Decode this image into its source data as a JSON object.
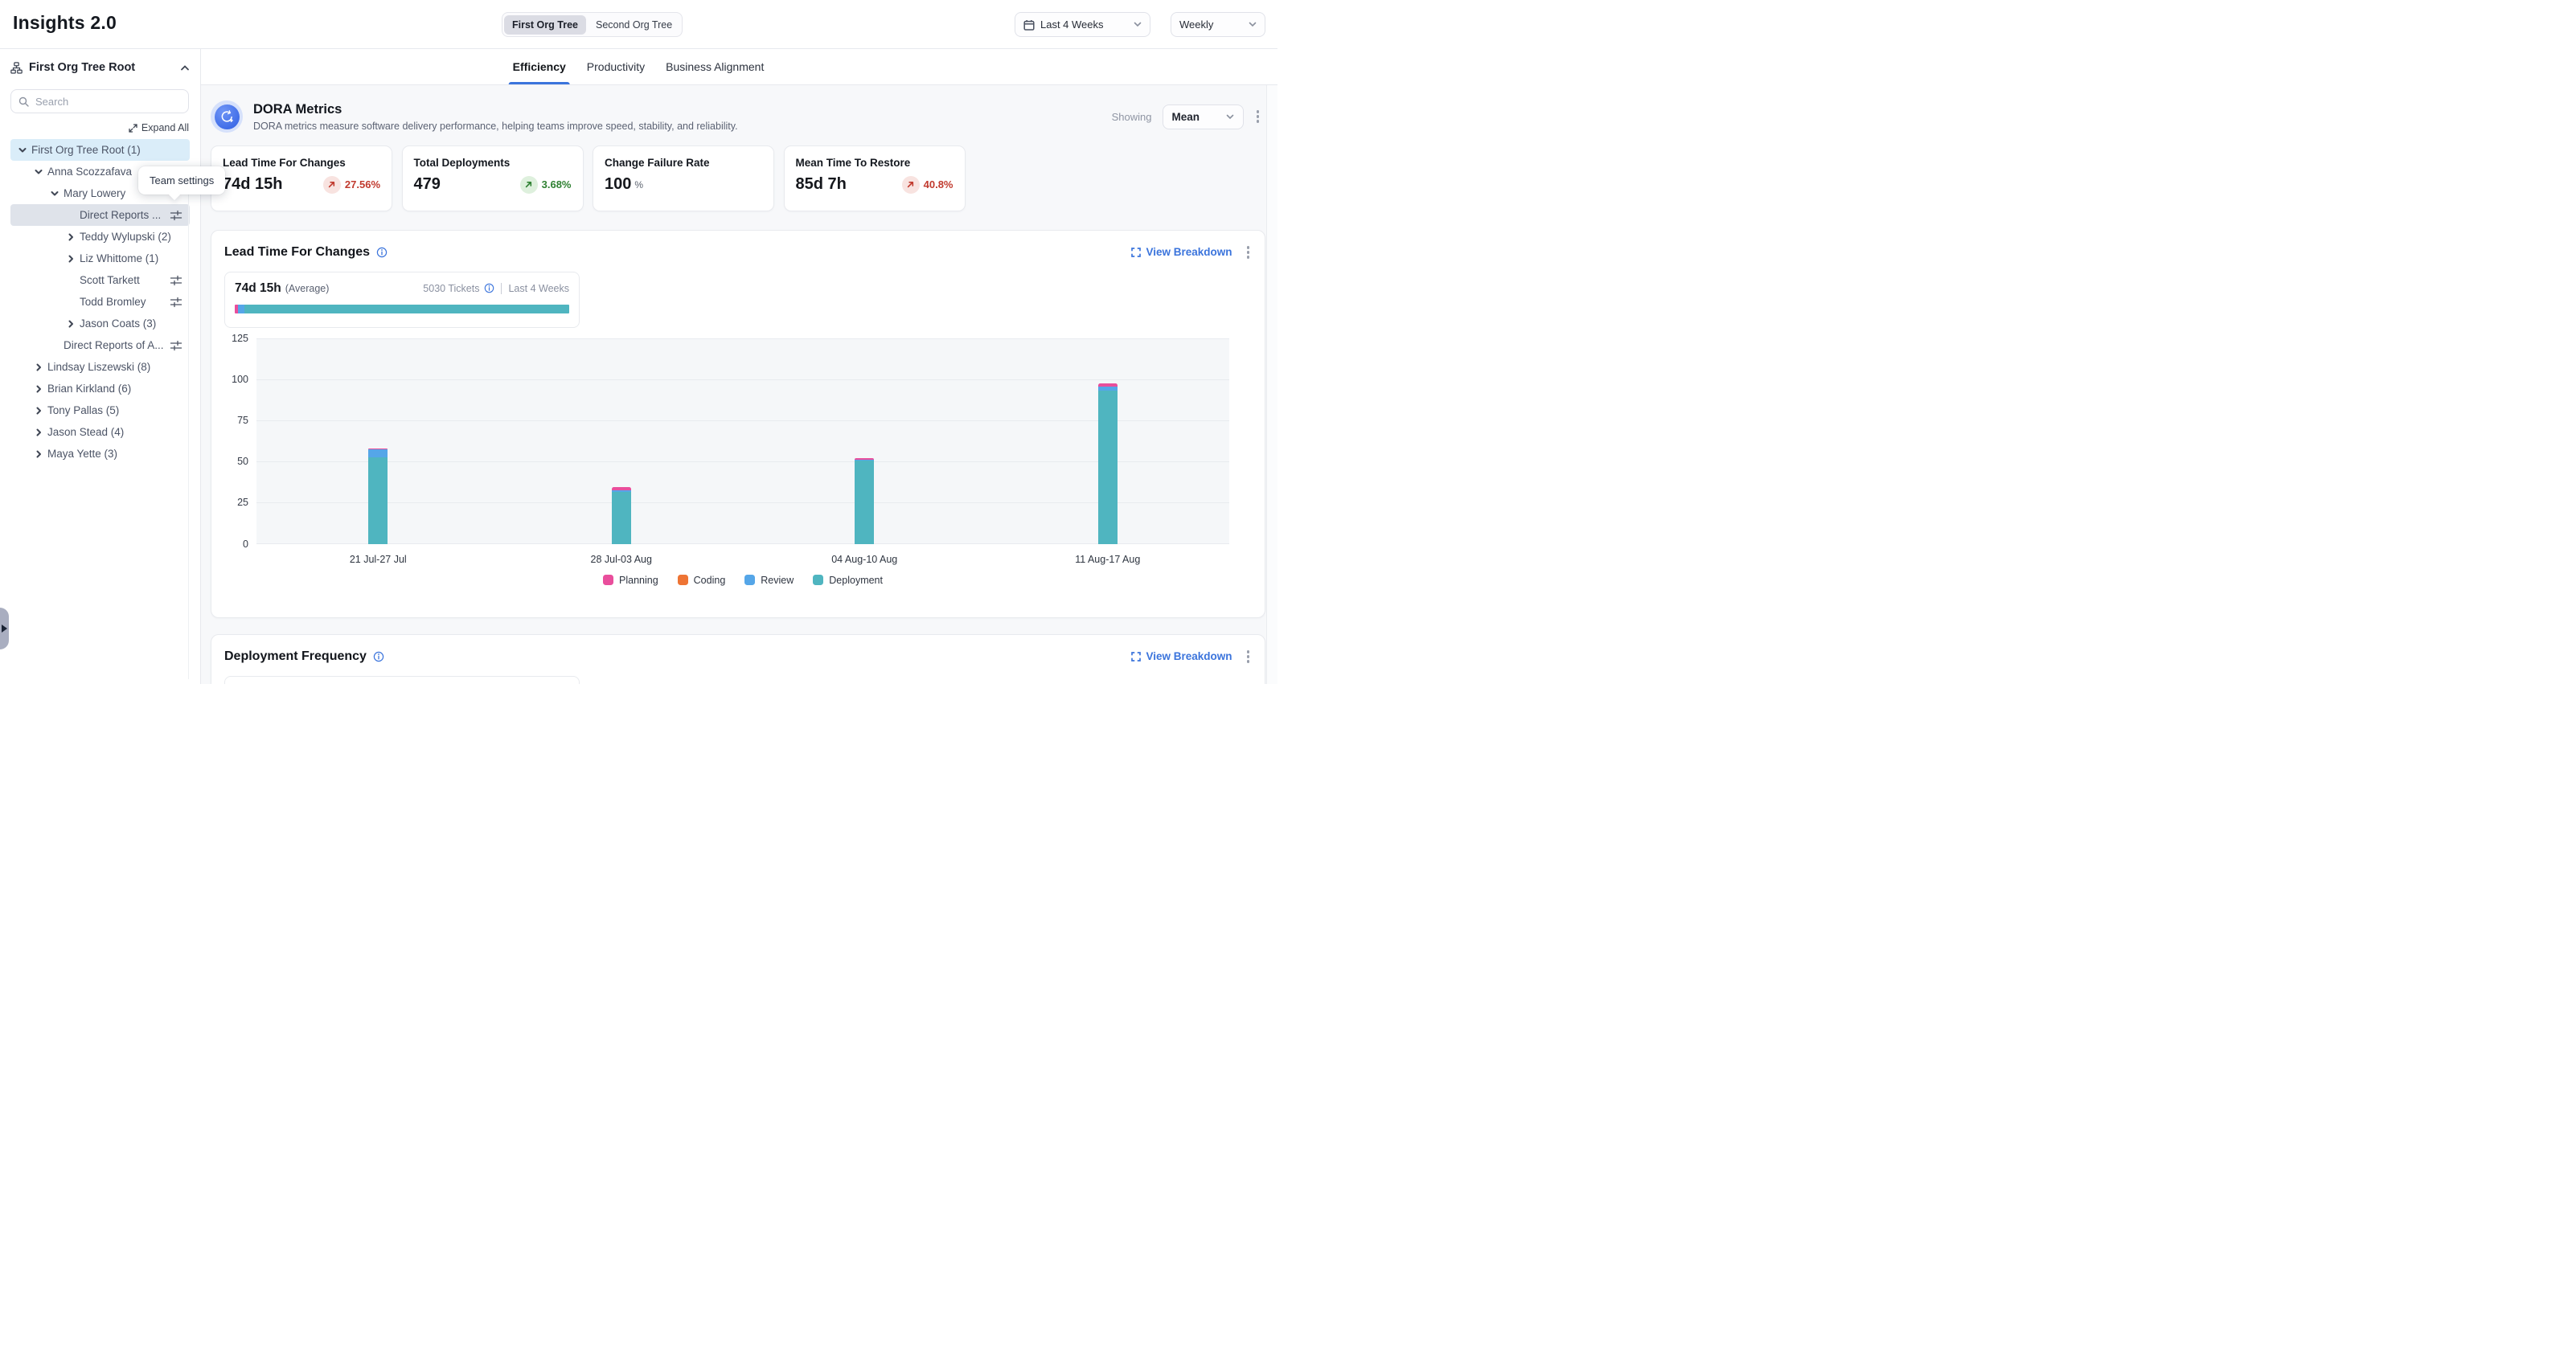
{
  "app": {
    "title": "Insights 2.0"
  },
  "header": {
    "org_toggle": [
      {
        "label": "First Org Tree",
        "active": true
      },
      {
        "label": "Second Org Tree",
        "active": false
      }
    ],
    "date_range": "Last 4 Weeks",
    "granularity": "Weekly"
  },
  "sidebar": {
    "header_title": "First Org Tree Root",
    "search_placeholder": "Search",
    "expand_all": "Expand All",
    "tooltip": "Team settings",
    "tree": [
      {
        "label": "First Org Tree Root (1)",
        "level": 0,
        "chevron": "down",
        "highlight": "blue"
      },
      {
        "label": "Anna Scozzafava",
        "level": 1,
        "chevron": "down"
      },
      {
        "label": "Mary Lowery",
        "level": 2,
        "chevron": "down"
      },
      {
        "label": "Direct Reports ...",
        "level": 3,
        "chevron": "none",
        "selected": true,
        "settings_icon": true
      },
      {
        "label": "Teddy Wylupski (2)",
        "level": 3,
        "chevron": "right"
      },
      {
        "label": "Liz Whittome (1)",
        "level": 3,
        "chevron": "right"
      },
      {
        "label": "Scott Tarkett",
        "level": 3,
        "chevron": "none",
        "settings_icon": true
      },
      {
        "label": "Todd Bromley",
        "level": 3,
        "chevron": "none",
        "settings_icon": true
      },
      {
        "label": "Jason Coats (3)",
        "level": 3,
        "chevron": "right"
      },
      {
        "label": "Direct Reports of A...",
        "level": 2,
        "chevron": "none",
        "settings_icon": true
      },
      {
        "label": "Lindsay Liszewski (8)",
        "level": 1,
        "chevron": "right"
      },
      {
        "label": "Brian Kirkland (6)",
        "level": 1,
        "chevron": "right"
      },
      {
        "label": "Tony Pallas (5)",
        "level": 1,
        "chevron": "right"
      },
      {
        "label": "Jason Stead (4)",
        "level": 1,
        "chevron": "right"
      },
      {
        "label": "Maya Yette (3)",
        "level": 1,
        "chevron": "right"
      }
    ]
  },
  "tabs": [
    {
      "label": "Efficiency",
      "active": true
    },
    {
      "label": "Productivity",
      "active": false
    },
    {
      "label": "Business Alignment",
      "active": false
    }
  ],
  "dora": {
    "title": "DORA Metrics",
    "subtitle": "DORA metrics measure software delivery performance, helping teams improve speed, stability, and reliability.",
    "showing_label": "Showing",
    "showing_value": "Mean"
  },
  "metric_cards": [
    {
      "title": "Lead Time For Changes",
      "value": "74d 15h",
      "delta": "27.56%",
      "direction": "up",
      "tone": "bad"
    },
    {
      "title": "Total Deployments",
      "value": "479",
      "delta": "3.68%",
      "direction": "up",
      "tone": "good"
    },
    {
      "title": "Change Failure Rate",
      "value": "100",
      "suffix": "%"
    },
    {
      "title": "Mean Time To Restore",
      "value": "85d 7h",
      "delta": "40.8%",
      "direction": "up",
      "tone": "bad"
    }
  ],
  "lead": {
    "title": "Lead Time For Changes",
    "view_breakdown": "View Breakdown",
    "average_value": "74d 15h",
    "average_label": "(Average)",
    "tickets": "5030 Tickets",
    "range_label": "Last 4 Weeks",
    "summary_segments": [
      {
        "name": "Planning",
        "pct": 1.0
      },
      {
        "name": "Review",
        "pct": 1.9
      },
      {
        "name": "Deployment",
        "pct": 97.1
      }
    ]
  },
  "deploy": {
    "title": "Deployment Frequency",
    "view_breakdown": "View Breakdown"
  },
  "chart_data": {
    "type": "bar",
    "stacked": true,
    "title": "Lead Time For Changes",
    "categories": [
      "21 Jul-27 Jul",
      "28 Jul-03 Aug",
      "04 Aug-10 Aug",
      "11 Aug-17 Aug"
    ],
    "series": [
      {
        "name": "Planning",
        "color": "#e94e9c",
        "values": [
          0.7,
          2.2,
          0.9,
          2.0
        ]
      },
      {
        "name": "Coding",
        "color": "#ee7434",
        "values": [
          0,
          0,
          0,
          0
        ]
      },
      {
        "name": "Review",
        "color": "#55a6e8",
        "values": [
          4.8,
          0.8,
          0.6,
          2.5
        ]
      },
      {
        "name": "Deployment",
        "color": "#4fb5c0",
        "values": [
          52.5,
          31.5,
          50.5,
          93.0
        ]
      }
    ],
    "stack_order_bottom_to_top": [
      "Deployment",
      "Review",
      "Coding",
      "Planning"
    ],
    "ylim": [
      0,
      125
    ],
    "yticks": [
      0,
      25,
      50,
      75,
      100,
      125
    ],
    "xlabel": "",
    "ylabel": "",
    "grid": true,
    "legend_position": "bottom"
  },
  "colors": {
    "accent_blue": "#3b74dc",
    "bad_red": "#c13a2e",
    "bad_red_bg": "#f8e3e0",
    "good_green": "#2f8132",
    "good_green_bg": "#def0dd",
    "content_bg": "#f7f8fa",
    "tree_selected": "#dfe3ea",
    "tree_root_highlight": "#daedf9"
  }
}
